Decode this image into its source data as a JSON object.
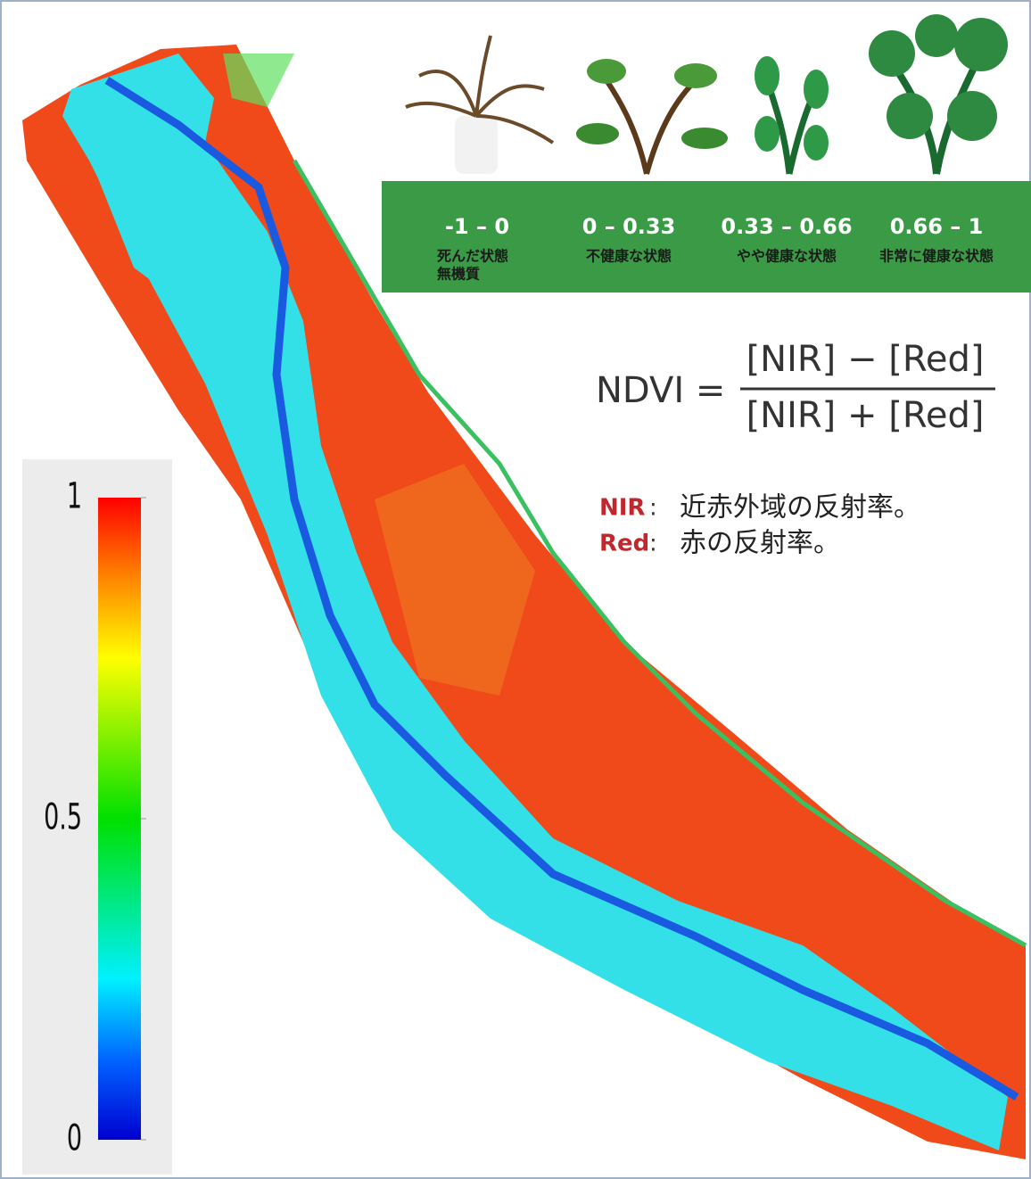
{
  "colorbar": {
    "lim": [
      0,
      1
    ],
    "ticks": [
      0,
      0.5,
      1
    ]
  },
  "legend": {
    "items": [
      {
        "range": "-1 – 0",
        "lines": [
          "死んだ状態",
          "無機質"
        ]
      },
      {
        "range": "0 – 0.33",
        "lines": [
          "不健康な状態"
        ]
      },
      {
        "range": "0.33 – 0.66",
        "lines": [
          "やや健康な状態"
        ]
      },
      {
        "range": "0.66 – 1",
        "lines": [
          "非常に健康な状態"
        ]
      }
    ]
  },
  "formula": {
    "lhs": "NDVI =",
    "numerator": "[NIR] − [Red]",
    "denominator": "[NIR] + [Red]"
  },
  "notes": [
    {
      "term": "NIR",
      "sep": ":",
      "text": "近赤外域の反射率。"
    },
    {
      "term": "Red",
      "sep": ":",
      "text": "赤の反射率。"
    }
  ]
}
